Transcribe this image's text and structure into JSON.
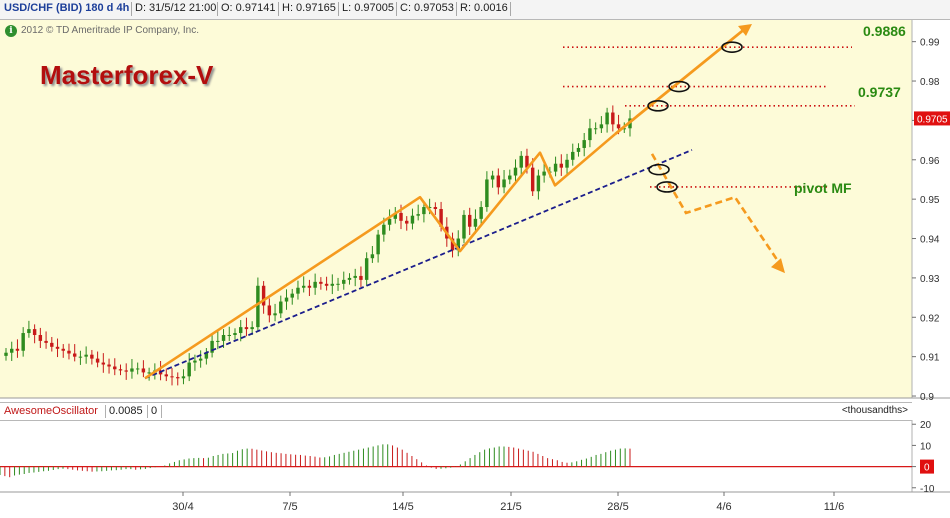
{
  "header": {
    "symbol": "USD/CHF (BID) 180 d 4h",
    "date": "D: 31/5/12 21:00",
    "open": "O: 0.97141",
    "high": "H: 0.97165",
    "low": "L: 0.97005",
    "close": "C: 0.97053",
    "range": "R: 0.0016"
  },
  "copyright": "2012 © TD Ameritrade IP Company, Inc.",
  "info_icon": "info-icon",
  "title": "Masterforex-V",
  "levels": {
    "upper": "0.9886",
    "middle": "0.9737",
    "pivot": "pivot MF"
  },
  "price_badge": "0.9705",
  "oscillator": {
    "name": "AwesomeOscillator",
    "value": "0.0085",
    "zero_label": "0",
    "units": "<thousandths>",
    "ticks": [
      "20",
      "10",
      "0",
      "-10"
    ],
    "zero_badge": "0"
  },
  "colors": {
    "plot_bg": "#fdfbd8",
    "osc_bg": "#ffffff",
    "up_candle": "#2e8b1f",
    "down_candle": "#c81a1a",
    "trend_orange": "#f59a1e",
    "support_line": "#1b1d8c",
    "level_dots": "#cc1010",
    "badge_red": "#e01010"
  },
  "chart_data": {
    "type": "candlestick",
    "title": "Masterforex-V",
    "symbol": "USD/CHF (BID) 180 d 4h",
    "x_ticks": [
      "30/4",
      "7/5",
      "14/5",
      "21/5",
      "28/5",
      "4/6",
      "11/6"
    ],
    "y_ticks": [
      0.9,
      0.91,
      0.92,
      0.93,
      0.94,
      0.95,
      0.96,
      0.97,
      0.98,
      0.99
    ],
    "ylim": [
      0.8995,
      0.9955
    ],
    "price_path": [
      0.911,
      0.912,
      0.9115,
      0.916,
      0.917,
      0.9155,
      0.914,
      0.9135,
      0.9125,
      0.912,
      0.9115,
      0.9108,
      0.91,
      0.91,
      0.9105,
      0.9095,
      0.9085,
      0.908,
      0.9075,
      0.9068,
      0.9065,
      0.9062,
      0.907,
      0.907,
      0.906,
      0.906,
      0.9065,
      0.9055,
      0.905,
      0.9048,
      0.9045,
      0.905,
      0.9085,
      0.909,
      0.9095,
      0.911,
      0.914,
      0.914,
      0.9155,
      0.9155,
      0.916,
      0.9175,
      0.917,
      0.9175,
      0.928,
      0.923,
      0.9205,
      0.921,
      0.924,
      0.925,
      0.926,
      0.9275,
      0.928,
      0.9275,
      0.929,
      0.9285,
      0.928,
      0.9285,
      0.9285,
      0.9295,
      0.93,
      0.9305,
      0.9295,
      0.935,
      0.936,
      0.941,
      0.9435,
      0.945,
      0.9465,
      0.9445,
      0.9438,
      0.9458,
      0.9462,
      0.948,
      0.948,
      0.9475,
      0.943,
      0.94,
      0.937,
      0.94,
      0.946,
      0.943,
      0.945,
      0.948,
      0.955,
      0.956,
      0.953,
      0.955,
      0.956,
      0.958,
      0.961,
      0.958,
      0.952,
      0.956,
      0.957,
      0.957,
      0.959,
      0.958,
      0.96,
      0.962,
      0.963,
      0.965,
      0.968,
      0.968,
      0.969,
      0.972,
      0.969,
      0.968,
      0.968,
      0.9705
    ],
    "overlays": {
      "upper_level": 0.9886,
      "middle_level": 0.9737,
      "pivot_level": 0.9531,
      "dotted_level_2": 0.9786,
      "pivot_label": "pivot MF"
    },
    "oscillator": {
      "name": "AwesomeOscillator",
      "ylim": [
        -12,
        22
      ],
      "y_ticks": [
        20,
        10,
        0,
        -10
      ],
      "values": [
        -4,
        -4.5,
        -5,
        -4.2,
        -3.8,
        -3.5,
        -3,
        -2.8,
        -2.5,
        -2.2,
        -2,
        -1.6,
        -1.2,
        -1,
        -1.2,
        -1.5,
        -1.8,
        -2,
        -2.2,
        -2.4,
        -2.3,
        -2.2,
        -2,
        -1.8,
        -1.7,
        -1.5,
        -1.2,
        -1.2,
        -1.5,
        -1.3,
        -1.1,
        -0.7,
        -0.3,
        0,
        0.5,
        1.5,
        2.2,
        3,
        3.4,
        3.8,
        4,
        4.1,
        4,
        4.2,
        5,
        5.5,
        6,
        6.2,
        6.4,
        7.5,
        8.2,
        8.5,
        8.4,
        8,
        7.6,
        7.2,
        6.8,
        6.5,
        6.3,
        6,
        5.8,
        5.6,
        5.5,
        5.2,
        5,
        4.7,
        4.3,
        4.4,
        4.8,
        5.5,
        6,
        6.5,
        7,
        7.5,
        8,
        8.5,
        9,
        9.5,
        10,
        10.5,
        10.5,
        10,
        9,
        8,
        6.5,
        5,
        3.5,
        2,
        0.5,
        -0.5,
        -1.1,
        -1,
        -0.8,
        -0.5,
        -0.2,
        1,
        2.5,
        4,
        5.5,
        6.8,
        8,
        8.6,
        9,
        9.5,
        9.5,
        9.3,
        9,
        8.5,
        8,
        7.5,
        7,
        6,
        5,
        4,
        3.5,
        3,
        2.2,
        1.8,
        2,
        2.5,
        3.2,
        3.8,
        4.6,
        5.5,
        6,
        6.8,
        7.5,
        8,
        8.5,
        8.6,
        8.5
      ]
    }
  }
}
